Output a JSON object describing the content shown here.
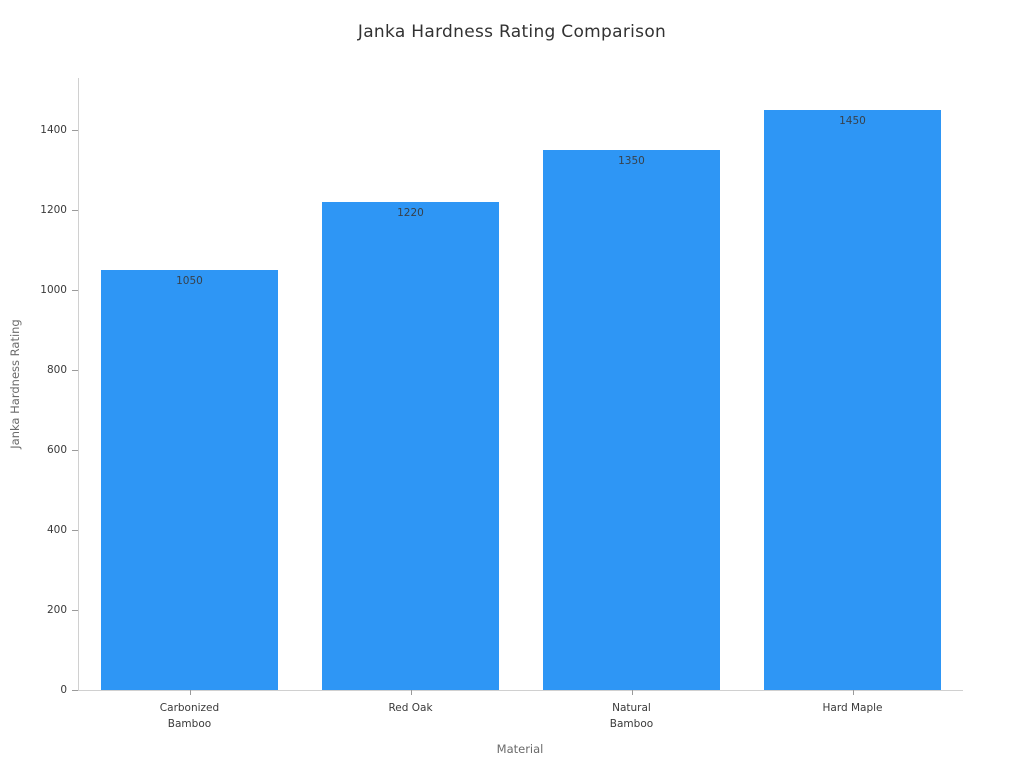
{
  "chart_data": {
    "type": "bar",
    "title": "Janka Hardness Rating Comparison",
    "xlabel": "Material",
    "ylabel": "Janka Hardness Rating",
    "categories": [
      "Carbonized\nBamboo",
      "Red Oak",
      "Natural\nBamboo",
      "Hard Maple"
    ],
    "values": [
      1050,
      1220,
      1350,
      1450
    ],
    "bar_labels": [
      "1050",
      "1220",
      "1350",
      "1450"
    ],
    "yticks": [
      0,
      200,
      400,
      600,
      800,
      1000,
      1200,
      1400
    ],
    "ylim": [
      0,
      1530
    ],
    "bar_width_fraction": 0.8,
    "grid": false,
    "legend": "none",
    "colors": {
      "bar_fill": "#2e96f5",
      "bar_value_text": "#37414b",
      "tick_text": "#3a3a3a",
      "axis_title_text": "#6b6b6b",
      "spine": "#d0d0d0",
      "tick_mark": "#9a9a9a",
      "title_text": "#323232",
      "background": "#ffffff"
    }
  }
}
